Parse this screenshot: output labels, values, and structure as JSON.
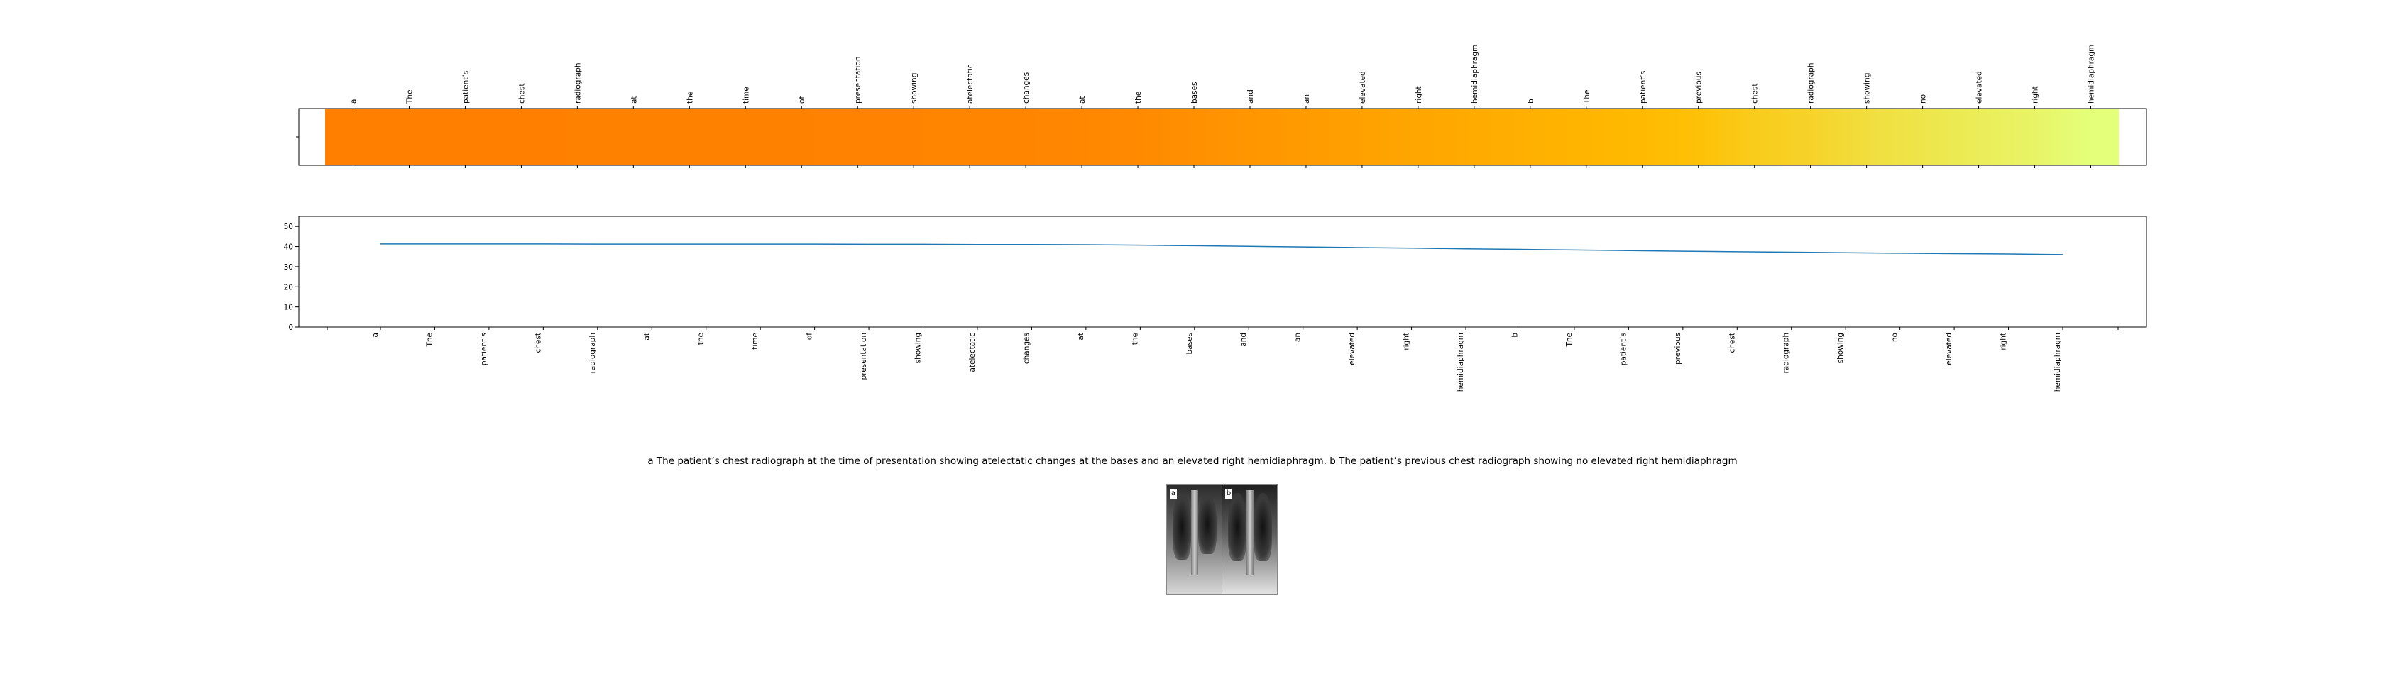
{
  "chart_data": [
    {
      "type": "heatmap",
      "tokens": [
        "a",
        "The",
        "patient’s",
        "chest",
        "radiograph",
        "at",
        "the",
        "time",
        "of",
        "presentation",
        "showing",
        "atelectatic",
        "changes",
        "at",
        "the",
        "bases",
        "and",
        "an",
        "elevated",
        "right",
        "hemidiaphragm",
        "b",
        "The",
        "patient’s",
        "previous",
        "chest",
        "radiograph",
        "showing",
        "no",
        "elevated",
        "right",
        "hemidiaphragm"
      ],
      "values": [
        41.3,
        41.3,
        41.3,
        41.3,
        41.2,
        41.2,
        41.2,
        41.2,
        41.2,
        41.1,
        41.1,
        41.0,
        41.0,
        40.9,
        40.7,
        40.4,
        40.1,
        39.8,
        39.5,
        39.2,
        38.9,
        38.6,
        38.3,
        38.0,
        37.7,
        37.4,
        37.2,
        36.9,
        36.7,
        36.5,
        36.3,
        36.0
      ],
      "colormap": "Wistia",
      "grid": false
    },
    {
      "type": "line",
      "x": [
        "a",
        "The",
        "patient’s",
        "chest",
        "radiograph",
        "at",
        "the",
        "time",
        "of",
        "presentation",
        "showing",
        "atelectatic",
        "changes",
        "at",
        "the",
        "bases",
        "and",
        "an",
        "elevated",
        "right",
        "hemidiaphragm",
        "b",
        "The",
        "patient’s",
        "previous",
        "chest",
        "radiograph",
        "showing",
        "no",
        "elevated",
        "right",
        "hemidiaphragm"
      ],
      "values": [
        41.3,
        41.3,
        41.3,
        41.3,
        41.2,
        41.2,
        41.2,
        41.2,
        41.2,
        41.1,
        41.1,
        41.0,
        41.0,
        40.9,
        40.7,
        40.4,
        40.1,
        39.8,
        39.5,
        39.2,
        38.9,
        38.6,
        38.3,
        38.0,
        37.7,
        37.4,
        37.2,
        36.9,
        36.7,
        36.5,
        36.3,
        36.0
      ],
      "ylim": [
        0,
        55
      ],
      "yticks": [
        "0",
        "10",
        "20",
        "30",
        "40",
        "50"
      ],
      "line_color": "#1f77b4",
      "grid": false
    }
  ],
  "caption": "a The patient’s chest radiograph at the time of presentation showing atelectatic changes at the bases and an elevated right hemidiaphragm. b The patient’s previous chest radiograph showing no elevated right hemidiaphragm",
  "figure": {
    "panel_a_label": "a",
    "panel_b_label": "b"
  }
}
